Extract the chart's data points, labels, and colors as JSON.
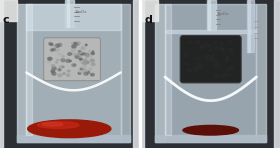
{
  "figsize": [
    2.8,
    1.48
  ],
  "dpi": 100,
  "bg_color": "#1a1a1a",
  "border_color": "#e0e0e0",
  "label_c": "c",
  "label_d": "d",
  "panels": {
    "c": {
      "bg": "#2a2e32",
      "beaker_outer_color": "#b8c8d0",
      "beaker_inner_color": "#c8d8e0",
      "water_color": "#b0c4cc",
      "water_alpha": 0.75,
      "oil_color": "#8b1a0a",
      "oil_highlight": "#c03020",
      "sponge_fill": "#c0c0c0",
      "sponge_edge": "#909090",
      "meniscus_color": "#ffffff",
      "tube_color": "#c8d4dc",
      "tick_color": "#888888"
    },
    "d": {
      "bg": "#2a2e32",
      "beaker_outer_color": "#b8c8d0",
      "beaker_inner_color": "#c8d8e0",
      "water_color": "#b0c4cc",
      "water_alpha": 0.7,
      "oil_color": "#5a1008",
      "sponge_fill": "#1a1a1a",
      "sponge_edge": "#383838",
      "meniscus_color": "#ffffff",
      "tube_color": "#c8d4dc",
      "tick_color": "#888888"
    }
  }
}
